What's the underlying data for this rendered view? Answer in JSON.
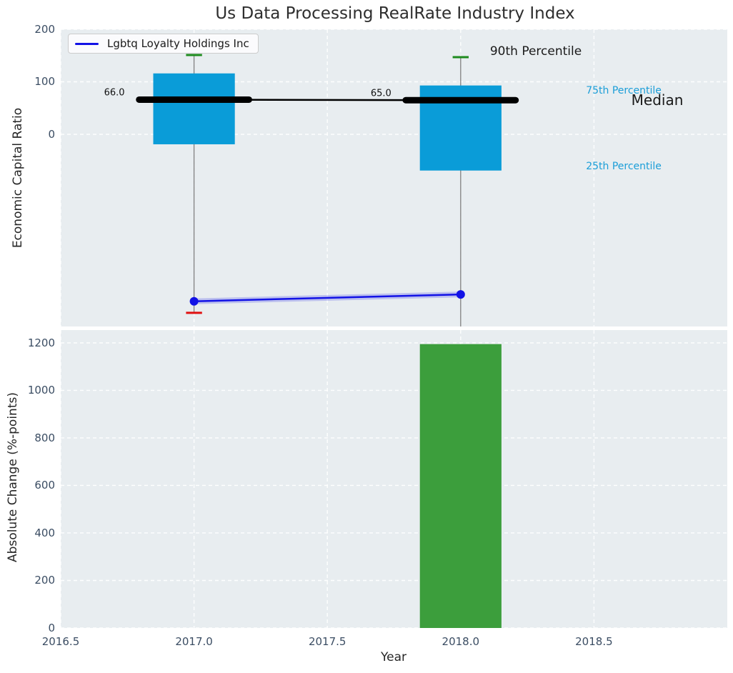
{
  "title": "Us Data Processing RealRate Industry Index",
  "legend": {
    "label": "Lgbtq Loyalty Holdings Inc"
  },
  "colors": {
    "axes_bg": "#e8edf0",
    "grid": "#ffffff",
    "box_fill": "#0a9cd8",
    "median_line": "#000000",
    "whisker": "#808080",
    "cap_90": "#1e8b1e",
    "cap_10": "#e01010",
    "company_line": "#1212e6",
    "company_halo": "rgba(30,30,230,0.22)",
    "bar_fill": "#3c9e3c",
    "tick_text": "#3b4d63",
    "label_text": "#262626",
    "title_text": "#2e2e2e",
    "percentile_text": "#1b9ed8",
    "annotation_text": "#1a1a1a"
  },
  "chart_data": [
    {
      "type": "box-percentile",
      "ylabel": "Economic Capital Ratio",
      "ylim": [
        -366,
        200
      ],
      "yticks": [
        0,
        100,
        200
      ],
      "xlim": [
        2016.5,
        2019.0
      ],
      "grid": true,
      "box_width": 0.306,
      "median_ext": 0.206,
      "cap_halfwidth": 0.03,
      "boxes": [
        {
          "x": 2017,
          "p10": -340,
          "p25": -19,
          "median": 66.0,
          "p75": 116,
          "p90": 151,
          "median_label": "66.0"
        },
        {
          "x": 2018,
          "p10": -380,
          "p25": -69,
          "median": 65.0,
          "p75": 93,
          "p90": 147,
          "median_label": "65.0"
        }
      ],
      "company_series": {
        "name": "Lgbtq Loyalty Holdings Inc",
        "x": [
          2017,
          2018
        ],
        "y": [
          -318,
          -305
        ]
      },
      "annotations": [
        {
          "text": "90th Percentile",
          "x": 2018.11,
          "y": 158,
          "size": 17,
          "color_key": "annotation_text",
          "halign": "left"
        },
        {
          "text": "75th Percentile",
          "x": 2018.47,
          "y": 83,
          "size": 14,
          "color_key": "percentile_text",
          "halign": "left"
        },
        {
          "text": "Median",
          "x": 2018.64,
          "y": 65,
          "size": 20,
          "color_key": "annotation_text",
          "halign": "left"
        },
        {
          "text": "25th Percentile",
          "x": 2018.47,
          "y": -61,
          "size": 14,
          "color_key": "percentile_text",
          "halign": "left"
        }
      ]
    },
    {
      "type": "bar",
      "ylabel": "Absolute Change (%-points)",
      "xlabel": "Year",
      "ylim": [
        0,
        1254
      ],
      "yticks": [
        0,
        200,
        400,
        600,
        800,
        1000,
        1200
      ],
      "xlim": [
        2016.5,
        2019.0
      ],
      "xtick_values": [
        2016.5,
        2017.0,
        2017.5,
        2018.0,
        2018.5
      ],
      "xtick_labels": [
        "2016.5",
        "2017.0",
        "2017.5",
        "2018.0",
        "2018.5"
      ],
      "grid": true,
      "bar_width": 0.306,
      "bars": [
        {
          "x": 2018,
          "value": 1195
        }
      ]
    }
  ]
}
